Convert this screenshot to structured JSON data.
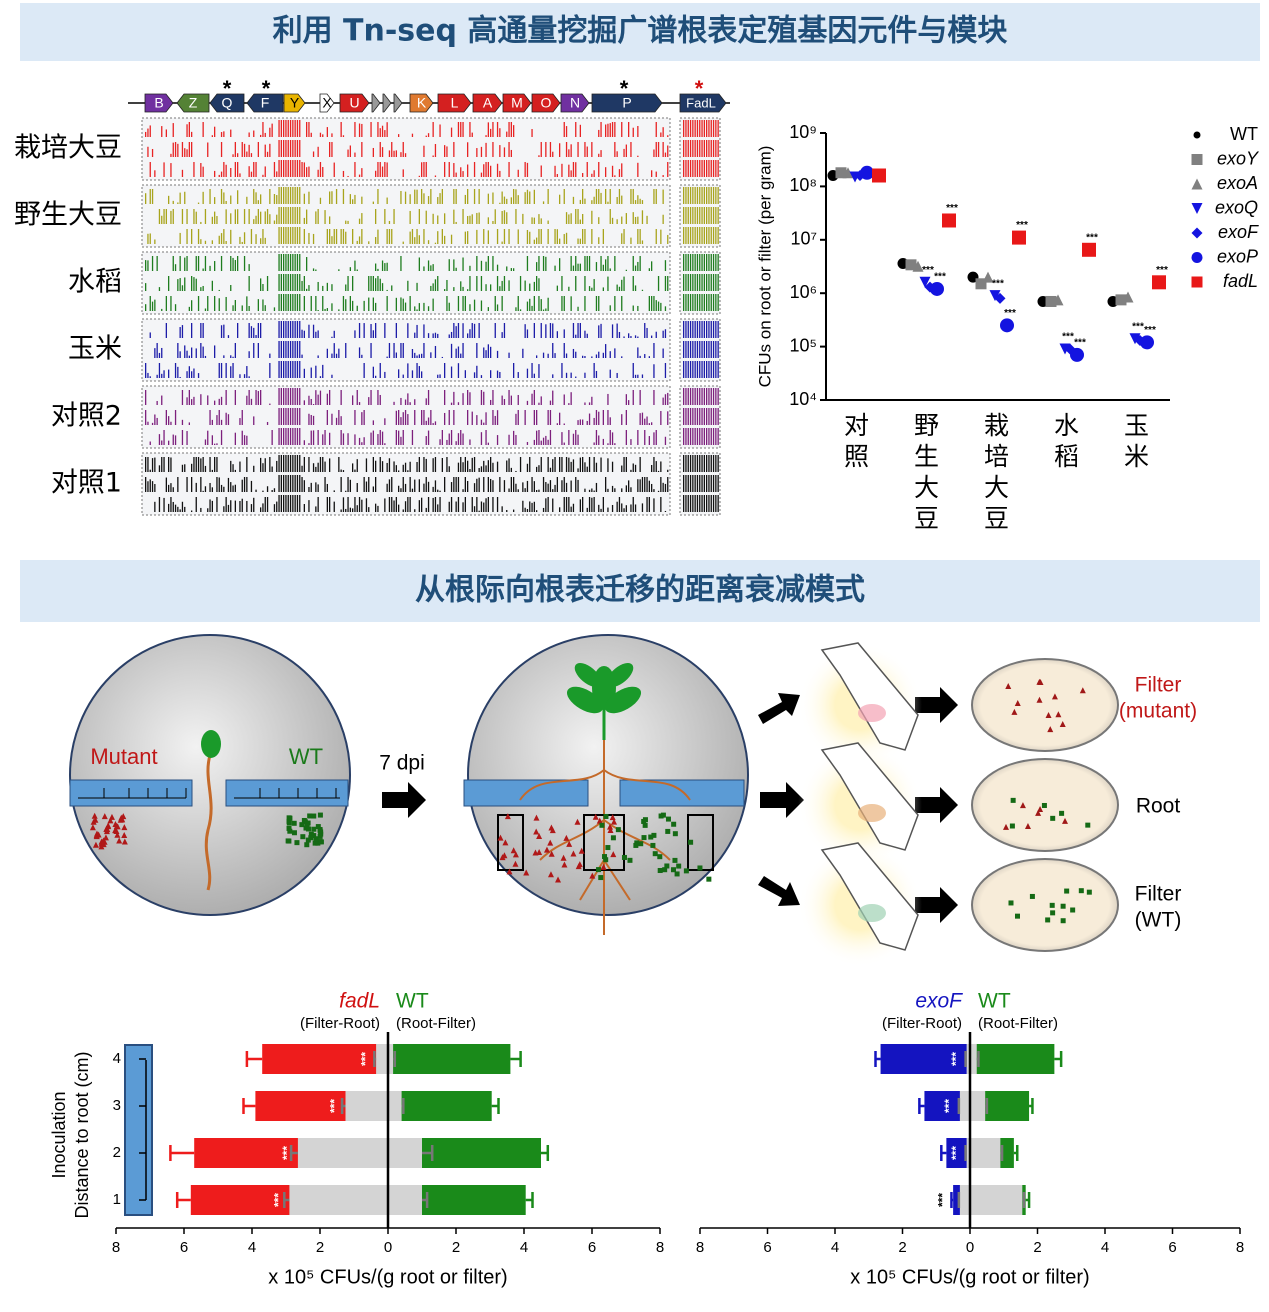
{
  "banners": [
    "利用 Tn-seq 高通量挖掘广谱根表定殖基因元件与模块",
    "从根际向根表迁移的距离衰减模式"
  ],
  "tnseq": {
    "genes": [
      "B",
      "Z",
      "Q",
      "F",
      "Y",
      "X",
      "U",
      "K",
      "L",
      "A",
      "M",
      "O",
      "N",
      "P"
    ],
    "fadl": "FadL",
    "stars": [
      "*",
      "*",
      "*",
      "*"
    ],
    "rows": [
      {
        "label": "栽培大豆",
        "color": "#e82424"
      },
      {
        "label": "野生大豆",
        "color": "#a8a41c"
      },
      {
        "label": "水稻",
        "color": "#1f7d1f"
      },
      {
        "label": "玉米",
        "color": "#1c1ca8"
      },
      {
        "label": "对照2",
        "color": "#7d207d"
      },
      {
        "label": "对照1",
        "color": "#111111"
      }
    ]
  },
  "diagram": {
    "mutant": "Mutant",
    "wt": "WT",
    "dpi": "7 dpi",
    "filter_mutant": [
      "Filter",
      "(mutant)"
    ],
    "root": "Root",
    "filter_wt": [
      "Filter",
      "(WT)"
    ]
  },
  "chart_data": [
    {
      "type": "scatter",
      "ylabel": "CFUs on root or filter (per gram)",
      "yscale": "log",
      "ylim": [
        10000,
        1000000000
      ],
      "yticks": [
        {
          "value": 10000,
          "label": "10⁴"
        },
        {
          "value": 100000,
          "label": "10⁵"
        },
        {
          "value": 1000000,
          "label": "10⁶"
        },
        {
          "value": 10000000,
          "label": "10⁷"
        },
        {
          "value": 100000000,
          "label": "10⁸"
        },
        {
          "value": 1000000000,
          "label": "10⁹"
        }
      ],
      "categories": [
        "对照",
        "野生大豆",
        "栽培大豆",
        "水稻",
        "玉米"
      ],
      "series": [
        {
          "name": "WT",
          "color": "#000000",
          "marker": "circle",
          "values": [
            160000000,
            3600000,
            2000000,
            700000,
            700000
          ]
        },
        {
          "name": "exoY",
          "color": "#808080",
          "marker": "square",
          "values": [
            180000000,
            3400000,
            1500000,
            700000,
            750000
          ]
        },
        {
          "name": "exoA",
          "color": "#808080",
          "marker": "triangle",
          "values": [
            180000000,
            3200000,
            2000000,
            750000,
            850000
          ]
        },
        {
          "name": "exoQ",
          "color": "#1414e0",
          "marker": "triangle-down",
          "values": [
            150000000,
            1600000,
            900000,
            90000,
            140000
          ],
          "significance": [
            null,
            "***",
            "***",
            "***",
            "***"
          ]
        },
        {
          "name": "exoF",
          "color": "#1414e0",
          "marker": "diamond",
          "values": [
            160000000,
            1300000,
            800000,
            90000,
            130000
          ]
        },
        {
          "name": "exoP",
          "color": "#1414e0",
          "marker": "circle",
          "values": [
            180000000,
            1200000,
            250000,
            70000,
            120000
          ],
          "significance": [
            null,
            "***",
            "***",
            "***",
            "***"
          ]
        },
        {
          "name": "fadL",
          "color": "#e81818",
          "marker": "square",
          "values": [
            160000000,
            23000000,
            11000000,
            6500000,
            1600000
          ],
          "significance": [
            null,
            "***",
            "***",
            "***",
            "***"
          ]
        }
      ]
    },
    {
      "type": "diverging-bar",
      "header_mutant": "fadL",
      "header_mutant_color": "#d01010",
      "header_wt": "WT",
      "header_wt_color": "#1a8a1a",
      "sub_mutant": "(Filter-Root)",
      "sub_wt": "(Root-Filter)",
      "xlabel": "x 10⁵ CFUs/(g root or filter)",
      "ylabel": [
        "Inoculation",
        "Distance to root (cm)"
      ],
      "categories": [
        "1",
        "2",
        "3",
        "4"
      ],
      "xlim": [
        -8,
        8
      ],
      "xticks": [
        {
          "value": -8,
          "label": "8"
        },
        {
          "value": -6,
          "label": "6"
        },
        {
          "value": -4,
          "label": "4"
        },
        {
          "value": -2,
          "label": "2"
        },
        0,
        2,
        4,
        6,
        8
      ],
      "series": [
        {
          "color": "#ee1c1c",
          "values": [
            -5.8,
            -5.7,
            -3.9,
            -3.7
          ],
          "errors": [
            0.4,
            0.7,
            0.35,
            0.45
          ],
          "significance": [
            "***",
            "***",
            "***",
            "***"
          ]
        },
        {
          "color": "#1a8a1a",
          "values": [
            4.05,
            4.5,
            3.05,
            3.6
          ],
          "errors": [
            0.2,
            0.2,
            0.2,
            0.3
          ]
        },
        {
          "color": "#d4d4d4",
          "values": [
            -2.9,
            -2.65,
            -1.25,
            -0.35
          ],
          "errors": [
            0.15,
            0.2,
            0.1,
            0.05
          ]
        },
        {
          "color": "#d4d4d4",
          "values": [
            1.0,
            1.0,
            0.4,
            0.15
          ],
          "errors": [
            0.15,
            0.3,
            0.05,
            0.05
          ]
        }
      ]
    },
    {
      "type": "diverging-bar",
      "header_mutant": "exoF",
      "header_mutant_color": "#1414c0",
      "header_wt": "WT",
      "header_wt_color": "#1a8a1a",
      "sub_mutant": "(Filter-Root)",
      "sub_wt": "(Root-Filter)",
      "xlabel": "x 10⁵ CFUs/(g root or filter)",
      "categories": [
        "1",
        "2",
        "3",
        "4"
      ],
      "xlim": [
        -8,
        8
      ],
      "xticks": [
        {
          "value": -8,
          "label": "8"
        },
        {
          "value": -6,
          "label": "6"
        },
        {
          "value": -4,
          "label": "4"
        },
        {
          "value": -2,
          "label": "2"
        },
        0,
        2,
        4,
        6,
        8
      ],
      "series": [
        {
          "color": "#1414c0",
          "values": [
            -0.5,
            -0.7,
            -1.35,
            -2.65
          ],
          "errors": [
            0.05,
            0.15,
            0.15,
            0.15
          ],
          "significance": [
            "***",
            "***",
            "***",
            "***"
          ]
        },
        {
          "color": "#1a8a1a",
          "values": [
            1.65,
            1.3,
            1.75,
            2.5
          ],
          "errors": [
            0.1,
            0.1,
            0.1,
            0.2
          ]
        },
        {
          "color": "#d4d4d4",
          "values": [
            -0.3,
            -0.1,
            -0.3,
            -0.1
          ],
          "errors": [
            0.03,
            0.03,
            0.03,
            0.03
          ]
        },
        {
          "color": "#d4d4d4",
          "values": [
            1.55,
            0.9,
            0.45,
            0.2
          ],
          "errors": [
            0.05,
            0.05,
            0.05,
            0.05
          ]
        }
      ]
    }
  ]
}
